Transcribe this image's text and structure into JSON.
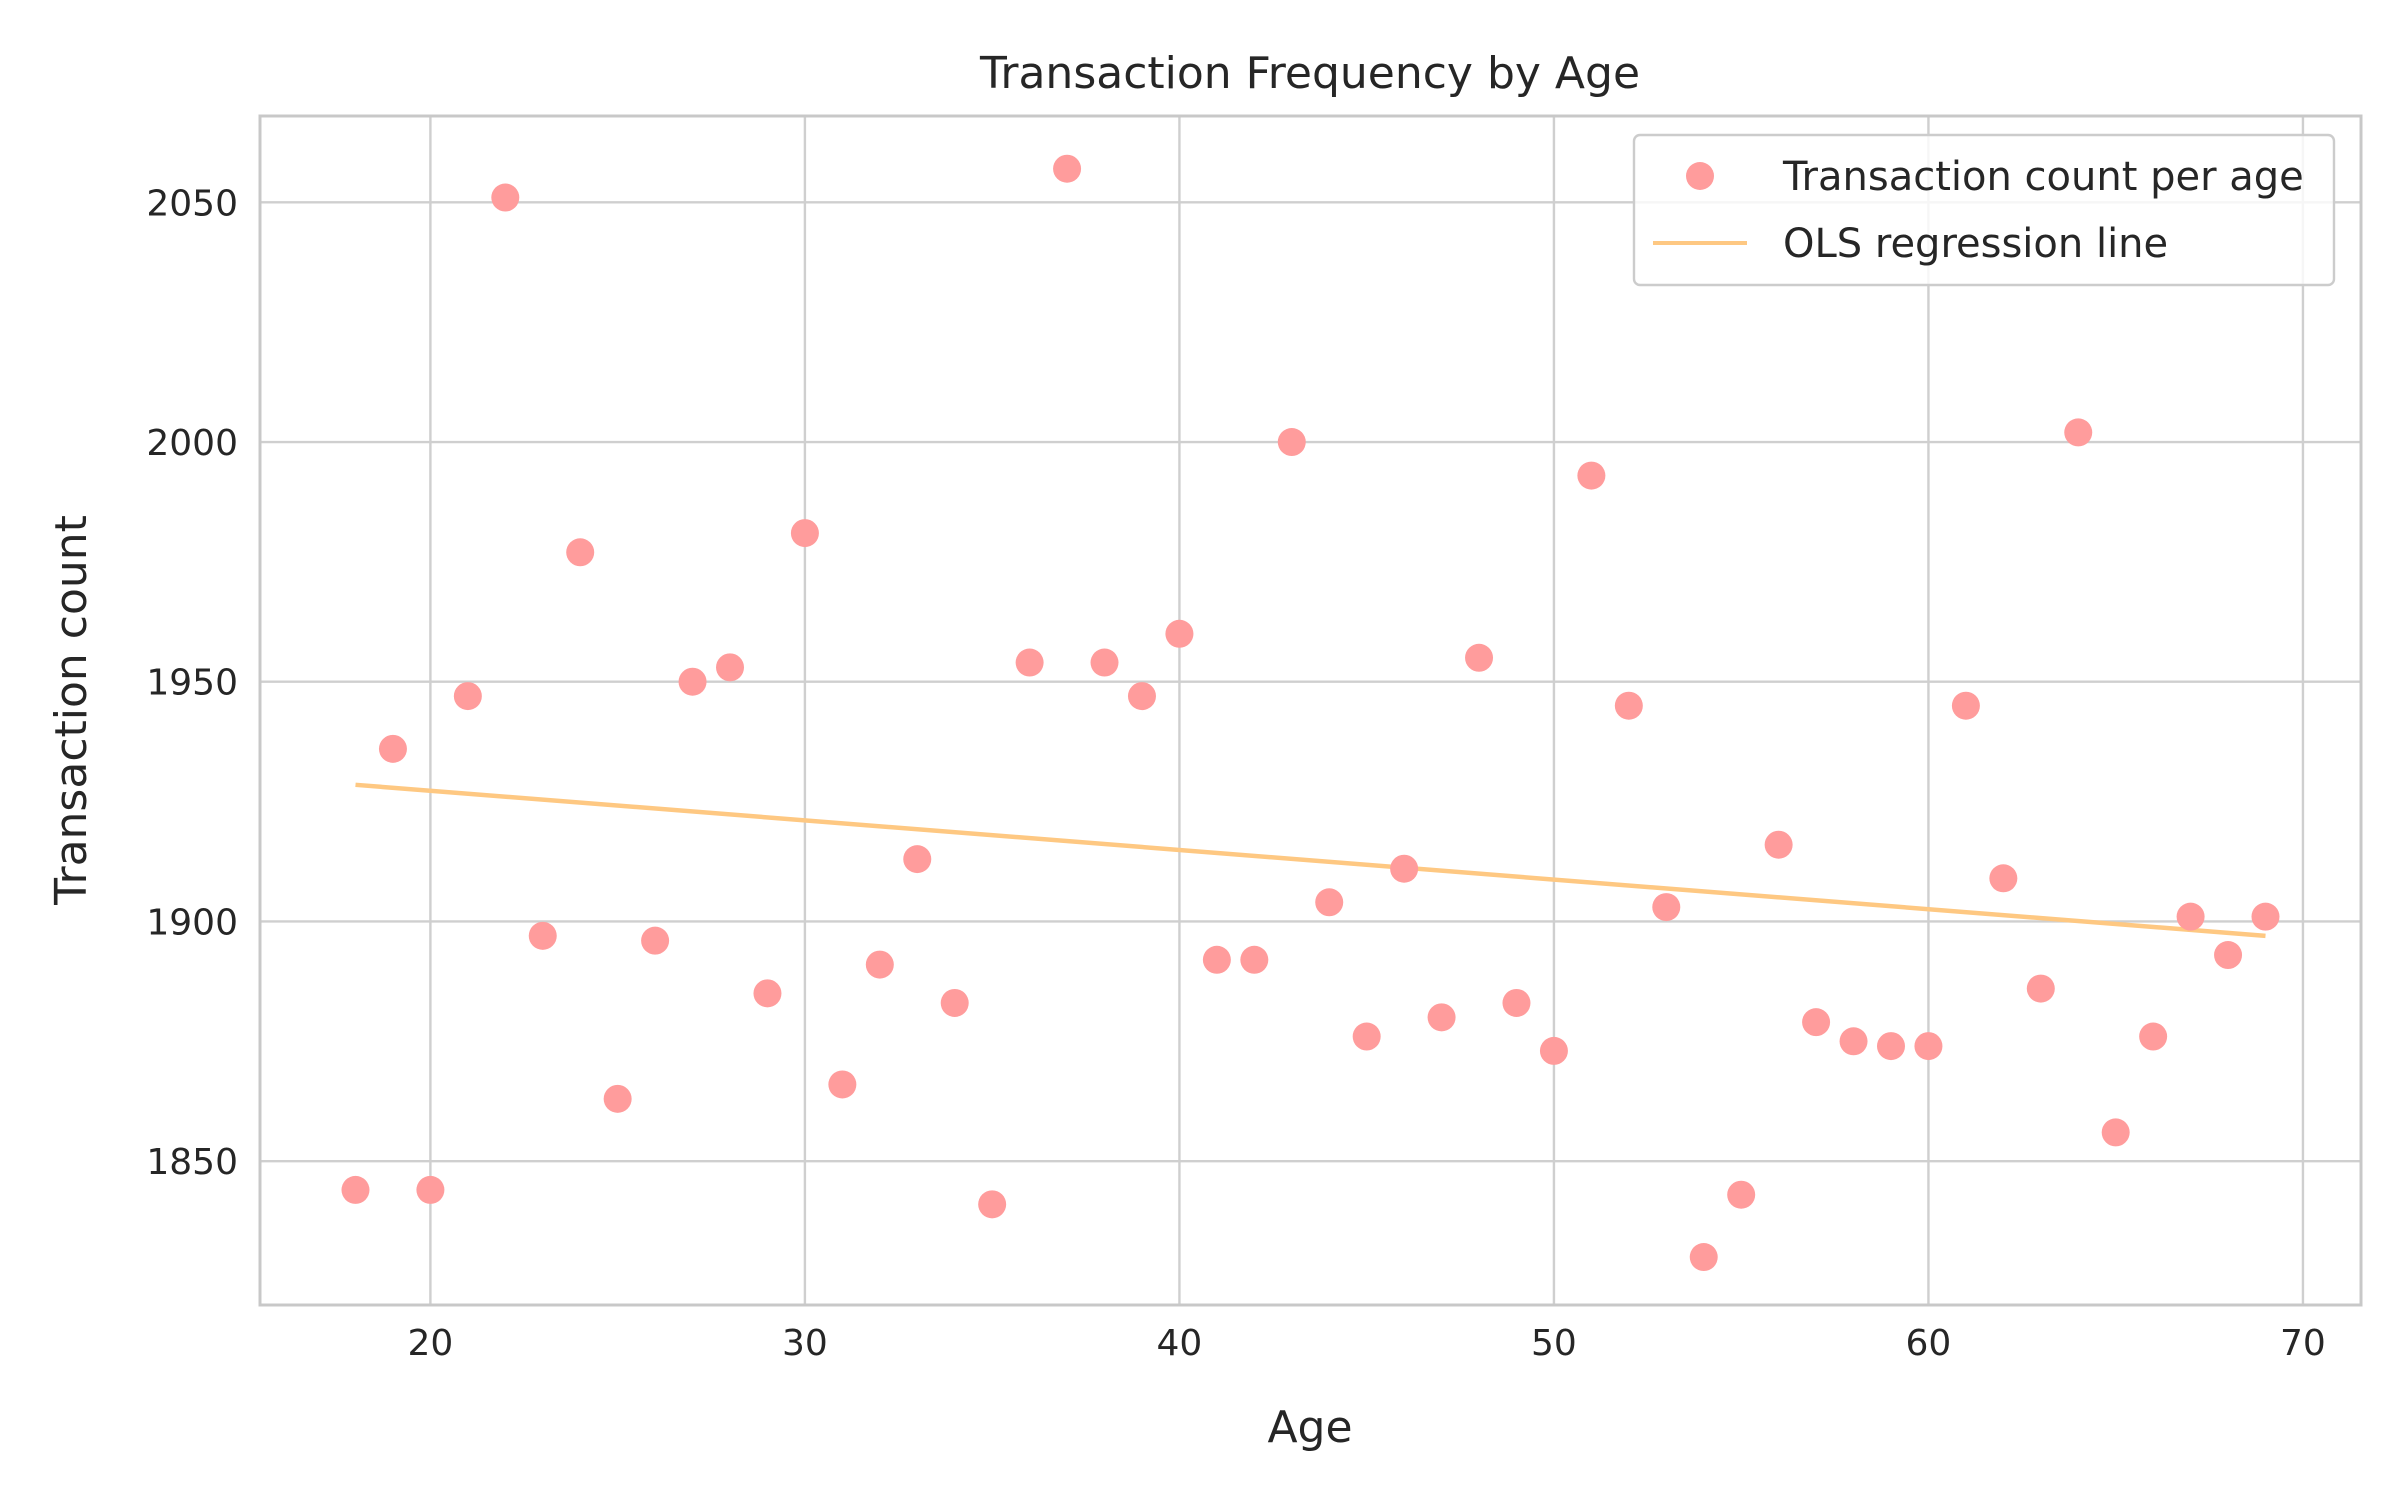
{
  "chart_data": {
    "type": "scatter",
    "title": "Transaction Frequency by Age",
    "xlabel": "Age",
    "ylabel": "Transaction count",
    "xlim": [
      15.45,
      71.55
    ],
    "ylim": [
      1820,
      2068
    ],
    "xticks": [
      20,
      30,
      40,
      50,
      60,
      70
    ],
    "yticks": [
      1850,
      1900,
      1950,
      2000,
      2050
    ],
    "grid": true,
    "legend_position": "top-right",
    "colors": {
      "points": "#ff9c9c",
      "regression": "#fec882",
      "grid": "#cfcfcf",
      "frame": "#c8c8c8",
      "text": "#262626"
    },
    "series": [
      {
        "name": "Transaction count per age",
        "type": "scatter",
        "x": [
          18,
          19,
          20,
          21,
          22,
          23,
          24,
          25,
          26,
          27,
          28,
          29,
          30,
          31,
          32,
          33,
          34,
          35,
          36,
          37,
          38,
          39,
          40,
          41,
          42,
          43,
          44,
          45,
          46,
          47,
          48,
          49,
          50,
          51,
          52,
          53,
          54,
          55,
          56,
          57,
          58,
          59,
          60,
          61,
          62,
          63,
          64,
          65,
          66,
          67,
          68,
          69
        ],
        "y": [
          1844,
          1936,
          1844,
          1947,
          2051,
          1897,
          1977,
          1863,
          1896,
          1950,
          1953,
          1885,
          1981,
          1866,
          1891,
          1913,
          1883,
          1841,
          1954,
          2057,
          1954,
          1947,
          1960,
          1892,
          1892,
          2000,
          1904,
          1876,
          1911,
          1880,
          1955,
          1883,
          1873,
          1993,
          1945,
          1903,
          1830,
          1843,
          1916,
          1879,
          1875,
          1874,
          1874,
          1945,
          1909,
          1886,
          2002,
          1856,
          1876,
          1901,
          1893,
          1901
        ]
      },
      {
        "name": "OLS regression line",
        "type": "line",
        "x": [
          18,
          69
        ],
        "y": [
          1928.5,
          1897
        ]
      }
    ]
  }
}
